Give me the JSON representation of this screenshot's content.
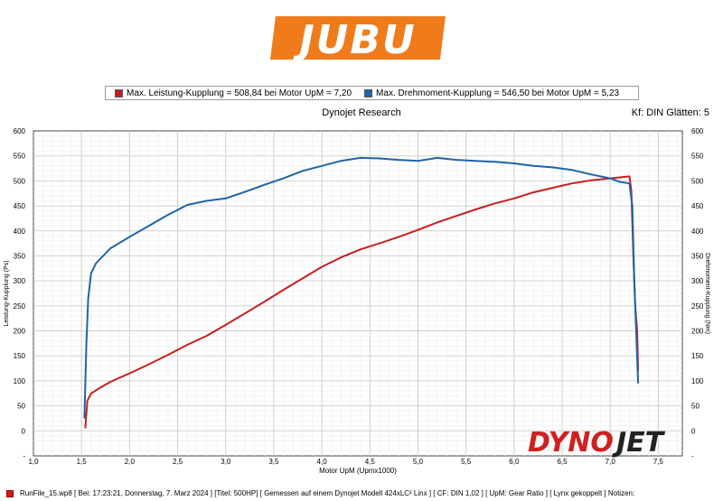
{
  "brand": {
    "logo_text": "JUBU",
    "logo_color": "#f07b1b",
    "watermark_part1": "DYNO",
    "watermark_part2": "JET",
    "watermark_color1": "#d02020",
    "watermark_color2": "#222222"
  },
  "legend": [
    {
      "label": "Max. Leistung-Kupplung = 508,84 bei Motor UpM = 7,20",
      "color": "#c81e1e"
    },
    {
      "label": "Max. Drehmoment-Kupplung = 546,50 bei Motor UpM = 5,23",
      "color": "#1e64a8"
    }
  ],
  "header": {
    "center": "Dynojet Research",
    "right": "Kf: DIN Glätten: 5"
  },
  "footer": {
    "text": "RunFile_15.wp8 [ Bei: 17:23:21, Donnerstag, 7. Marz 2024 ] [Titel: 500HP]  [ Gemessen auf einem Dynojet Modell 424xLC² Linx ] [ CF: DIN 1,02 ] [ UpM: Gear Ratio ] [ Lynx gekoppelt ] Notizen:"
  },
  "chart_data": {
    "type": "line",
    "xlabel": "Motor UpM (Upmx1000)",
    "ylabel_left": "Leistung-Kupplung (Ps)",
    "ylabel_right": "Drehmoment-Kupplung (Nm)",
    "xlim": [
      1.0,
      7.75
    ],
    "ylim": [
      -50,
      600
    ],
    "xticks": [
      "1,0",
      "1,5",
      "2,0",
      "2,5",
      "3,0",
      "3,5",
      "4,0",
      "4,5",
      "5,0",
      "5,5",
      "6,0",
      "6,5",
      "7,0",
      "7,5"
    ],
    "yticks": [
      "-",
      "0",
      "50",
      "100",
      "150",
      "200",
      "250",
      "300",
      "350",
      "400",
      "450",
      "500",
      "550",
      "600"
    ],
    "grid": true,
    "series": [
      {
        "name": "Leistung-Kupplung",
        "color": "#c81e1e",
        "x": [
          1.54,
          1.56,
          1.6,
          1.7,
          1.8,
          2.0,
          2.2,
          2.4,
          2.6,
          2.8,
          3.0,
          3.2,
          3.4,
          3.6,
          3.8,
          4.0,
          4.2,
          4.4,
          4.6,
          4.8,
          5.0,
          5.2,
          5.4,
          5.6,
          5.8,
          6.0,
          6.2,
          6.4,
          6.6,
          6.8,
          7.0,
          7.1,
          7.2,
          7.22,
          7.24,
          7.26,
          7.28,
          7.29
        ],
        "y": [
          5,
          60,
          75,
          87,
          98,
          115,
          133,
          152,
          172,
          190,
          212,
          235,
          258,
          282,
          305,
          328,
          347,
          363,
          375,
          388,
          402,
          417,
          430,
          443,
          455,
          465,
          477,
          486,
          495,
          501,
          505,
          507,
          509,
          480,
          350,
          250,
          200,
          120
        ]
      },
      {
        "name": "Drehmoment-Kupplung",
        "color": "#1e64a8",
        "x": [
          1.53,
          1.55,
          1.57,
          1.6,
          1.65,
          1.7,
          1.8,
          2.0,
          2.2,
          2.4,
          2.6,
          2.8,
          3.0,
          3.2,
          3.4,
          3.6,
          3.8,
          4.0,
          4.2,
          4.4,
          4.6,
          4.8,
          5.0,
          5.2,
          5.4,
          5.6,
          5.8,
          6.0,
          6.2,
          6.4,
          6.6,
          6.8,
          7.0,
          7.1,
          7.2,
          7.23,
          7.25,
          7.27,
          7.29
        ],
        "y": [
          25,
          170,
          265,
          315,
          335,
          345,
          365,
          388,
          410,
          432,
          452,
          460,
          465,
          478,
          492,
          505,
          520,
          530,
          540,
          546,
          545,
          542,
          540,
          546,
          542,
          540,
          538,
          535,
          530,
          527,
          522,
          513,
          505,
          498,
          495,
          450,
          300,
          200,
          95
        ]
      }
    ]
  }
}
